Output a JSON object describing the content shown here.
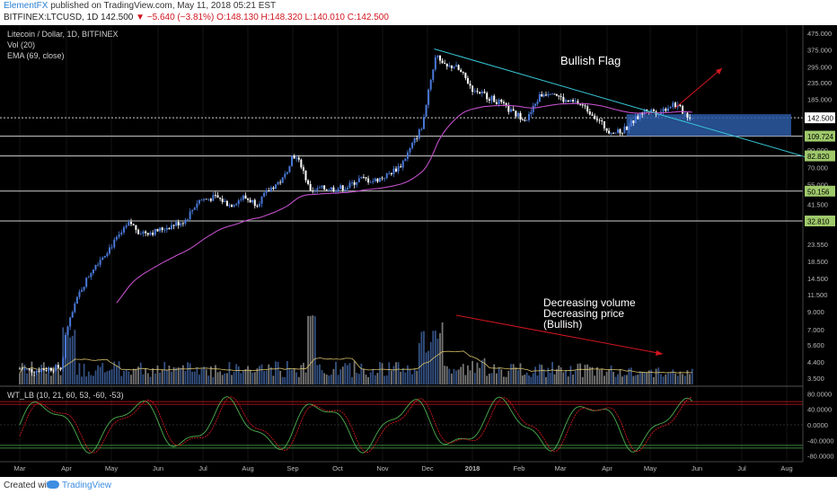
{
  "header": {
    "author": "ElementFX",
    "published": "published on TradingView.com, May 11, 2018 05:21 EST",
    "symbol": "BITFINEX:LTCUSD, 1D",
    "price": "142.500",
    "change": "▼ −5.640 (−3.81%)",
    "ohlc": "O:148.130 H:148.320 L:140.010 C:142.500"
  },
  "legend": {
    "pair": "Litecoin / Dollar, 1D, BITFINEX",
    "vol": "Vol (20)",
    "ema": "EMA (69, close)",
    "osc": "WT_LB (10, 21, 60, 53, -60, -53)"
  },
  "annotations": {
    "flag": "Bullish Flag",
    "volume_1": "Decreasing volume",
    "volume_2": "Decreasing price",
    "volume_3": "(Bullish)"
  },
  "footer": {
    "created": "Created with",
    "brand": "TradingView"
  },
  "colors": {
    "up": "#4a78d8",
    "down": "#ffffff",
    "ema": "#c04ec8",
    "trend": "#38c8d8",
    "zone": "#2d5aa5",
    "arrow": "#d0161f",
    "vol_ma": "#d8c06a",
    "osc_green": "#4caf50",
    "osc_red": "#d0161f"
  },
  "chart_data": [
    {
      "type": "candlestick",
      "scale": "log",
      "x": [
        "Mar",
        "Apr",
        "May",
        "Jun",
        "Jul",
        "Aug",
        "Sep",
        "Oct",
        "Nov",
        "Dec",
        "2018",
        "Feb",
        "Mar",
        "Apr",
        "May",
        "Jun",
        "Jul",
        "Aug"
      ],
      "y_ticks": [
        "475.000",
        "375.000",
        "295.000",
        "235.000",
        "185.000",
        "142.500",
        "109.724",
        "90.000",
        "82.820",
        "70.000",
        "55.000",
        "50.156",
        "41.500",
        "32.810",
        "23.550",
        "18.500",
        "14.500",
        "11.500",
        "9.000",
        "7.000",
        "5.600",
        "4.400",
        "3.500"
      ],
      "price_label": "142.500",
      "horizontal_levels": [
        "142.500",
        "109.724",
        "82.820",
        "50.156",
        "32.810"
      ],
      "ylim": [
        3.2,
        500
      ]
    },
    {
      "type": "bar",
      "name": "Vol (20)"
    },
    {
      "type": "line",
      "name": "WT_LB (10, 21, 60, 53, -60, -53)",
      "y_ticks": [
        "80.0000",
        "40.0000",
        "0.0000",
        "-40.0000",
        "-80.0000"
      ],
      "levels": [
        60,
        53,
        -53,
        -60
      ],
      "ylim": [
        -95,
        95
      ]
    }
  ]
}
